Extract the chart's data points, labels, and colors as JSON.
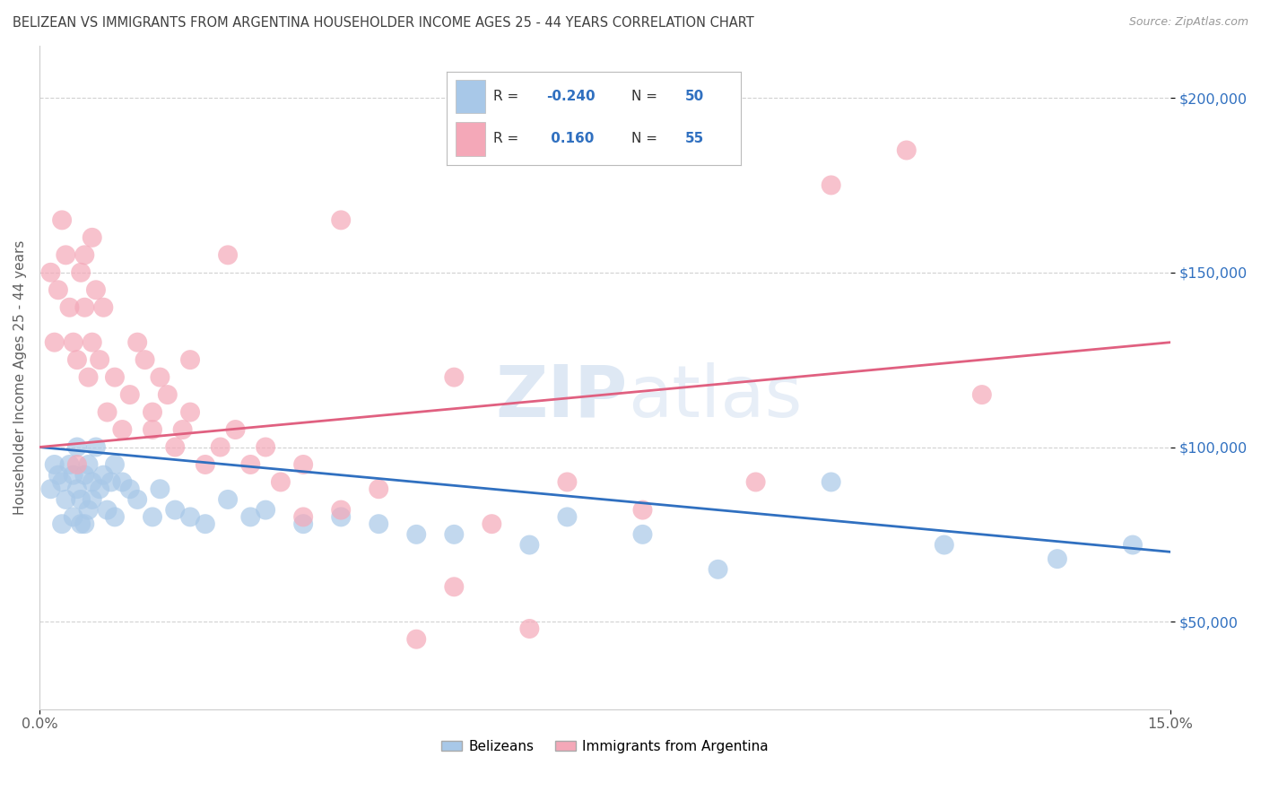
{
  "title": "BELIZEAN VS IMMIGRANTS FROM ARGENTINA HOUSEHOLDER INCOME AGES 25 - 44 YEARS CORRELATION CHART",
  "source": "Source: ZipAtlas.com",
  "ylabel": "Householder Income Ages 25 - 44 years",
  "xlim": [
    0.0,
    15.0
  ],
  "ylim": [
    25000,
    215000
  ],
  "yticks": [
    50000,
    100000,
    150000,
    200000
  ],
  "ytick_labels": [
    "$50,000",
    "$100,000",
    "$150,000",
    "$200,000"
  ],
  "blue_R": -0.24,
  "blue_N": 50,
  "pink_R": 0.16,
  "pink_N": 55,
  "blue_color": "#a8c8e8",
  "pink_color": "#f4a8b8",
  "blue_line_color": "#3070c0",
  "pink_line_color": "#e06080",
  "legend_label_blue": "Belizeans",
  "legend_label_pink": "Immigrants from Argentina",
  "background_color": "#ffffff",
  "grid_color": "#cccccc",
  "title_color": "#404040",
  "axis_color": "#606060",
  "watermark_color": "#d0dff0",
  "blue_x": [
    0.15,
    0.2,
    0.25,
    0.3,
    0.3,
    0.35,
    0.4,
    0.45,
    0.45,
    0.5,
    0.5,
    0.55,
    0.55,
    0.6,
    0.6,
    0.65,
    0.65,
    0.7,
    0.7,
    0.75,
    0.8,
    0.85,
    0.9,
    0.95,
    1.0,
    1.0,
    1.1,
    1.2,
    1.3,
    1.5,
    1.6,
    1.8,
    2.0,
    2.2,
    2.5,
    2.8,
    3.0,
    3.5,
    4.0,
    4.5,
    5.0,
    5.5,
    6.5,
    7.0,
    8.0,
    9.0,
    10.5,
    12.0,
    13.5,
    14.5
  ],
  "blue_y": [
    88000,
    95000,
    92000,
    78000,
    90000,
    85000,
    95000,
    80000,
    92000,
    88000,
    100000,
    78000,
    85000,
    92000,
    78000,
    95000,
    82000,
    90000,
    85000,
    100000,
    88000,
    92000,
    82000,
    90000,
    95000,
    80000,
    90000,
    88000,
    85000,
    80000,
    88000,
    82000,
    80000,
    78000,
    85000,
    80000,
    82000,
    78000,
    80000,
    78000,
    75000,
    75000,
    72000,
    80000,
    75000,
    65000,
    90000,
    72000,
    68000,
    72000
  ],
  "pink_x": [
    0.15,
    0.2,
    0.25,
    0.3,
    0.35,
    0.4,
    0.45,
    0.5,
    0.55,
    0.6,
    0.65,
    0.7,
    0.75,
    0.8,
    0.85,
    0.9,
    1.0,
    1.1,
    1.2,
    1.3,
    1.4,
    1.5,
    1.6,
    1.7,
    1.8,
    1.9,
    2.0,
    2.2,
    2.4,
    2.6,
    2.8,
    3.0,
    3.2,
    3.5,
    4.0,
    4.5,
    5.0,
    5.5,
    6.0,
    6.5,
    7.0,
    8.0,
    9.5,
    10.5,
    11.5,
    12.5,
    5.5,
    4.0,
    2.5,
    3.5,
    0.5,
    0.6,
    0.7,
    1.5,
    2.0
  ],
  "pink_y": [
    150000,
    130000,
    145000,
    165000,
    155000,
    140000,
    130000,
    125000,
    150000,
    140000,
    120000,
    130000,
    145000,
    125000,
    140000,
    110000,
    120000,
    105000,
    115000,
    130000,
    125000,
    110000,
    120000,
    115000,
    100000,
    105000,
    110000,
    95000,
    100000,
    105000,
    95000,
    100000,
    90000,
    95000,
    82000,
    88000,
    45000,
    60000,
    78000,
    48000,
    90000,
    82000,
    90000,
    175000,
    185000,
    115000,
    120000,
    165000,
    155000,
    80000,
    95000,
    155000,
    160000,
    105000,
    125000
  ]
}
